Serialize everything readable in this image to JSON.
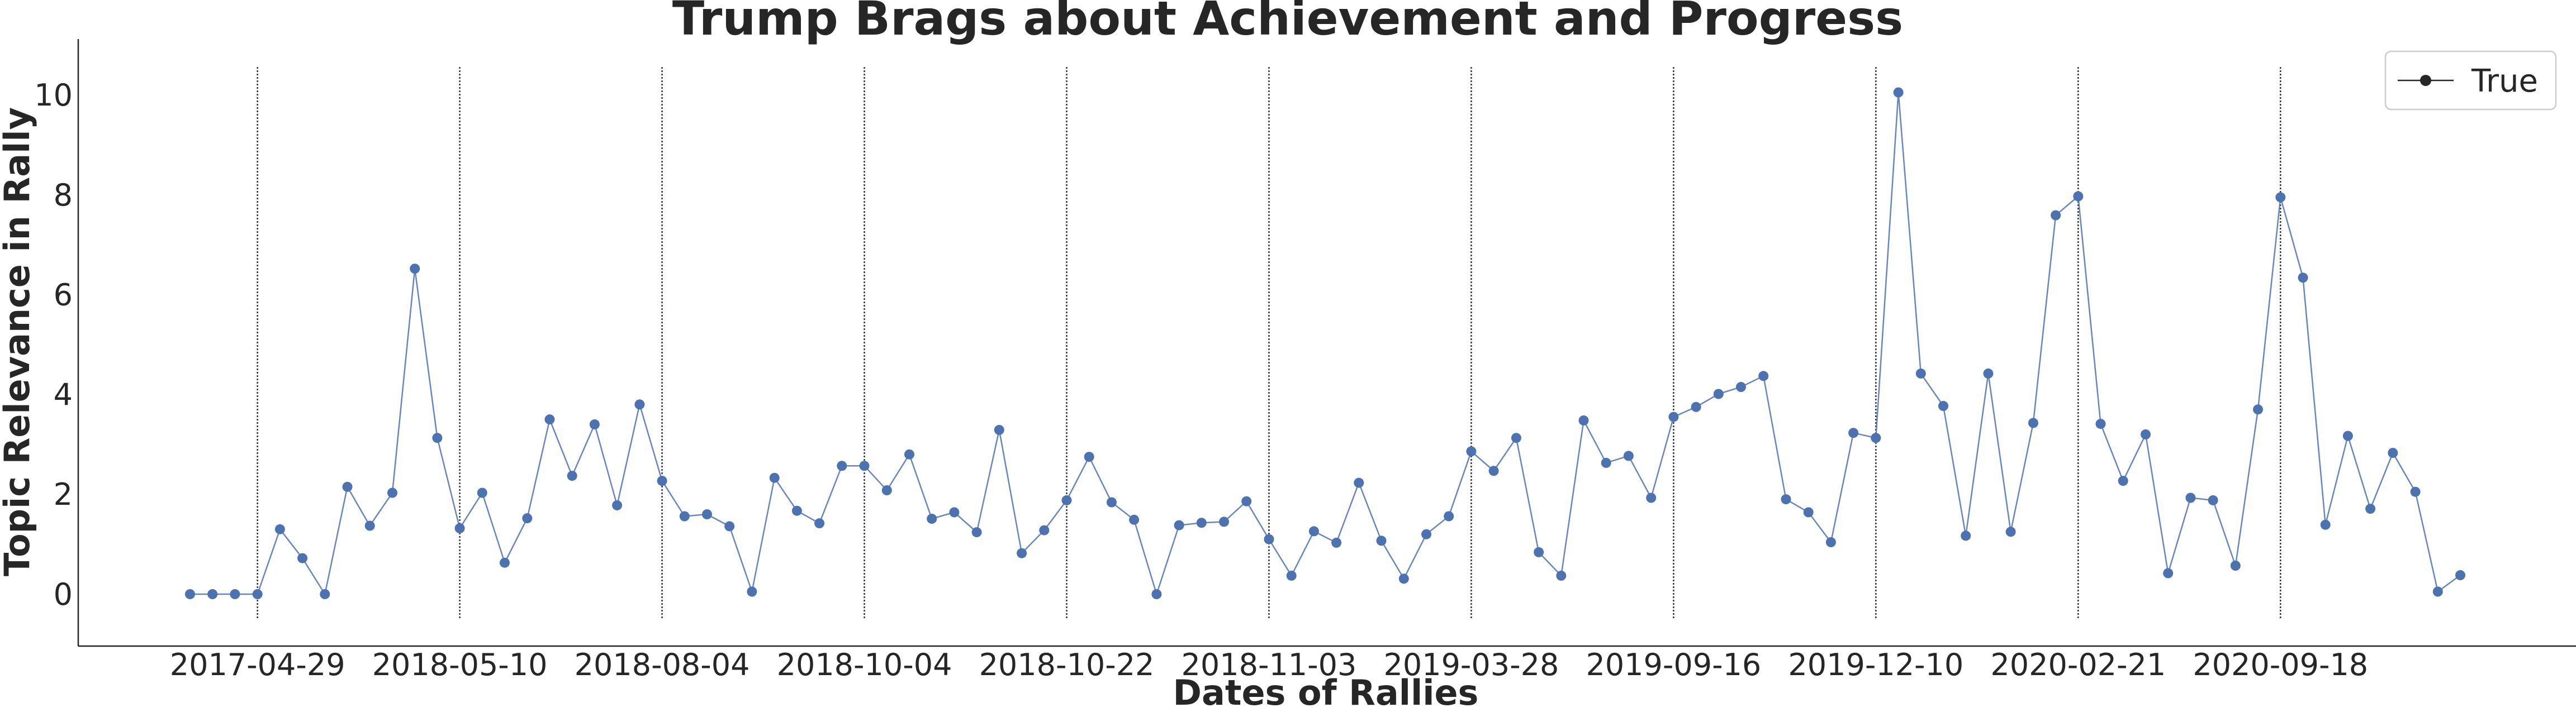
{
  "chart_data": {
    "type": "line",
    "title": "Trump Brags about Achievement and Progress",
    "xlabel": "Dates of Rallies",
    "ylabel": "Topic Relevance in Rally",
    "ylim": [
      -1.05,
      11.1
    ],
    "yticks": [
      0,
      2,
      4,
      6,
      8,
      10
    ],
    "grid": false,
    "legend": {
      "placement": "top-right",
      "entries": [
        "True"
      ]
    },
    "x_tick_labels": [
      "2017-04-29",
      "2018-05-10",
      "2018-08-04",
      "2018-10-04",
      "2018-10-22",
      "2018-11-03",
      "2019-03-28",
      "2019-09-16",
      "2019-12-10",
      "2020-02-21",
      "2020-09-18"
    ],
    "x_tick_indices": [
      3,
      12,
      21,
      30,
      39,
      48,
      57,
      66,
      75,
      84,
      93
    ],
    "series": [
      {
        "name": "True",
        "color": "#4c72b0",
        "values": [
          0,
          0,
          0,
          0,
          1.3,
          0.72,
          0,
          2.15,
          1.37,
          2.03,
          6.52,
          3.13,
          1.32,
          2.03,
          0.63,
          1.52,
          3.5,
          2.37,
          3.4,
          1.78,
          3.8,
          2.27,
          1.56,
          1.6,
          1.36,
          0.05,
          2.33,
          1.67,
          1.42,
          2.57,
          2.57,
          2.08,
          2.8,
          1.51,
          1.64,
          1.24,
          3.29,
          0.82,
          1.28,
          1.88,
          2.75,
          1.84,
          1.49,
          0,
          1.38,
          1.43,
          1.45,
          1.86,
          1.1,
          0.37,
          1.26,
          1.03,
          2.23,
          1.07,
          0.31,
          1.2,
          1.56,
          2.86,
          2.47,
          3.13,
          0.84,
          0.37,
          3.48,
          2.63,
          2.77,
          1.93,
          3.55,
          3.75,
          4.01,
          4.15,
          4.37,
          1.9,
          1.64,
          1.04,
          3.23,
          3.13,
          10.05,
          4.42,
          3.77,
          1.17,
          4.42,
          1.25,
          3.43,
          7.59,
          7.97,
          3.41,
          2.27,
          3.2,
          0.42,
          1.93,
          1.88,
          0.57,
          3.7,
          7.95,
          6.34,
          1.39,
          3.17,
          1.71,
          2.83,
          2.05,
          0.05,
          0.38
        ]
      }
    ]
  }
}
